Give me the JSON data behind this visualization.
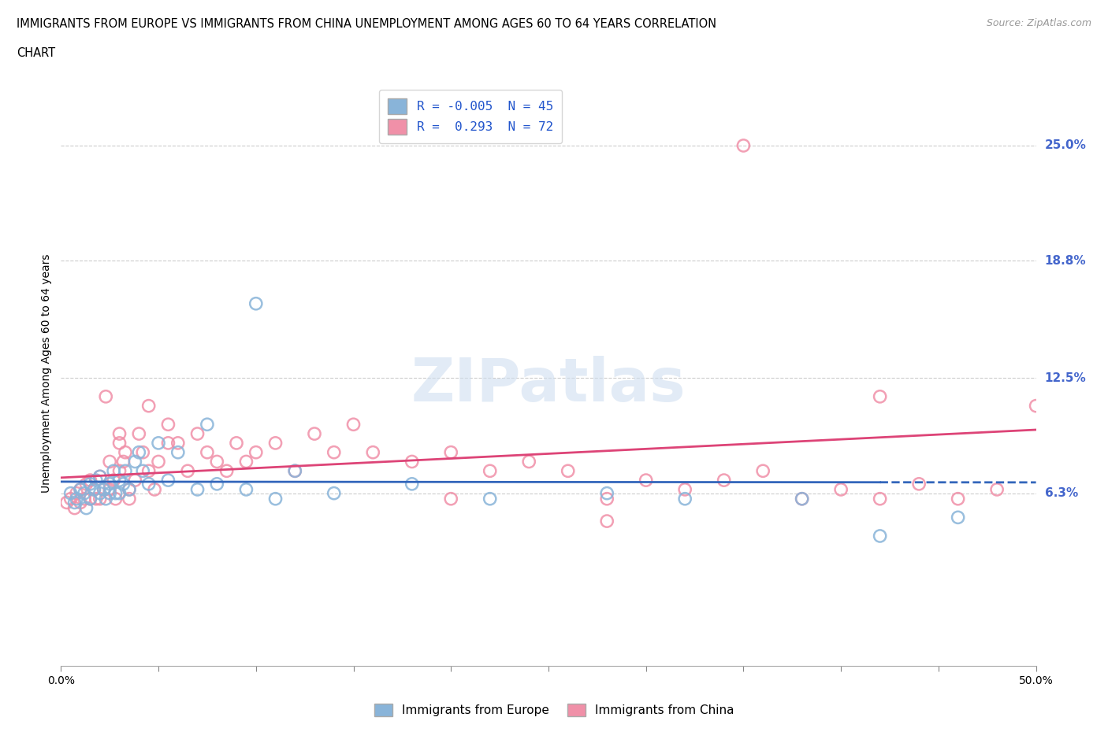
{
  "title_line1": "IMMIGRANTS FROM EUROPE VS IMMIGRANTS FROM CHINA UNEMPLOYMENT AMONG AGES 60 TO 64 YEARS CORRELATION",
  "title_line2": "CHART",
  "source_text": "Source: ZipAtlas.com",
  "ylabel": "Unemployment Among Ages 60 to 64 years",
  "xlim": [
    0.0,
    0.5
  ],
  "ylim": [
    -0.03,
    0.285
  ],
  "ytick_positions": [
    0.063,
    0.125,
    0.188,
    0.25
  ],
  "ytick_labels": [
    "6.3%",
    "12.5%",
    "18.8%",
    "25.0%"
  ],
  "europe_color": "#89b4d9",
  "china_color": "#f090a8",
  "europe_line_color": "#3366bb",
  "china_line_color": "#dd4477",
  "europe_R": -0.005,
  "europe_N": 45,
  "china_R": 0.293,
  "china_N": 72,
  "europe_scatter_x": [
    0.005,
    0.007,
    0.008,
    0.01,
    0.012,
    0.013,
    0.015,
    0.015,
    0.017,
    0.018,
    0.02,
    0.02,
    0.022,
    0.023,
    0.025,
    0.025,
    0.027,
    0.028,
    0.03,
    0.03,
    0.032,
    0.033,
    0.035,
    0.038,
    0.04,
    0.042,
    0.045,
    0.05,
    0.055,
    0.06,
    0.07,
    0.075,
    0.08,
    0.095,
    0.1,
    0.11,
    0.12,
    0.14,
    0.18,
    0.22,
    0.28,
    0.32,
    0.38,
    0.42,
    0.46
  ],
  "europe_scatter_y": [
    0.063,
    0.058,
    0.06,
    0.065,
    0.063,
    0.055,
    0.068,
    0.06,
    0.065,
    0.07,
    0.063,
    0.072,
    0.065,
    0.06,
    0.068,
    0.063,
    0.075,
    0.063,
    0.07,
    0.063,
    0.068,
    0.075,
    0.065,
    0.08,
    0.085,
    0.075,
    0.068,
    0.09,
    0.07,
    0.085,
    0.065,
    0.1,
    0.068,
    0.065,
    0.165,
    0.06,
    0.075,
    0.063,
    0.068,
    0.06,
    0.063,
    0.06,
    0.06,
    0.04,
    0.05
  ],
  "china_scatter_x": [
    0.003,
    0.005,
    0.007,
    0.008,
    0.01,
    0.01,
    0.012,
    0.013,
    0.015,
    0.015,
    0.017,
    0.018,
    0.02,
    0.02,
    0.022,
    0.023,
    0.025,
    0.025,
    0.027,
    0.028,
    0.03,
    0.03,
    0.03,
    0.032,
    0.033,
    0.035,
    0.035,
    0.038,
    0.04,
    0.042,
    0.045,
    0.045,
    0.048,
    0.05,
    0.055,
    0.055,
    0.06,
    0.065,
    0.07,
    0.075,
    0.08,
    0.085,
    0.09,
    0.095,
    0.1,
    0.11,
    0.12,
    0.13,
    0.14,
    0.15,
    0.16,
    0.18,
    0.2,
    0.22,
    0.24,
    0.26,
    0.28,
    0.3,
    0.32,
    0.34,
    0.36,
    0.38,
    0.4,
    0.42,
    0.44,
    0.46,
    0.48,
    0.5,
    0.35,
    0.28,
    0.42,
    0.2
  ],
  "china_scatter_y": [
    0.058,
    0.06,
    0.055,
    0.063,
    0.065,
    0.058,
    0.06,
    0.068,
    0.07,
    0.06,
    0.065,
    0.06,
    0.072,
    0.06,
    0.065,
    0.115,
    0.08,
    0.065,
    0.07,
    0.06,
    0.09,
    0.075,
    0.095,
    0.08,
    0.085,
    0.065,
    0.06,
    0.07,
    0.095,
    0.085,
    0.075,
    0.11,
    0.065,
    0.08,
    0.09,
    0.1,
    0.09,
    0.075,
    0.095,
    0.085,
    0.08,
    0.075,
    0.09,
    0.08,
    0.085,
    0.09,
    0.075,
    0.095,
    0.085,
    0.1,
    0.085,
    0.08,
    0.085,
    0.075,
    0.08,
    0.075,
    0.06,
    0.07,
    0.065,
    0.07,
    0.075,
    0.06,
    0.065,
    0.06,
    0.068,
    0.06,
    0.065,
    0.11,
    0.25,
    0.048,
    0.115,
    0.06
  ],
  "watermark_text": "ZIPatlas",
  "legend_color": "#2255cc",
  "background_color": "#ffffff",
  "grid_color": "#cccccc",
  "axis_label_color": "#4466cc"
}
